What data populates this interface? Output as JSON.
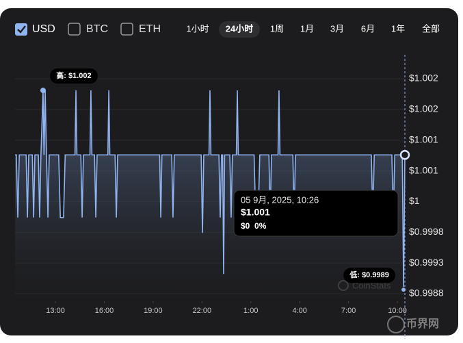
{
  "toolbar": {
    "other_currencies": [
      "BTC",
      "ETH"
    ],
    "ranges": [
      "1小时",
      "24小时",
      "1周",
      "1月",
      "3月",
      "6月",
      "1年",
      "全部"
    ],
    "selected_range": 1
  },
  "chart_data": {
    "type": "line",
    "series": [
      {
        "name": "USD",
        "color": "#8fb4f0",
        "x": [
          10.52,
          10.6,
          10.69,
          10.78,
          11.2,
          11.28,
          11.36,
          11.58,
          11.66,
          11.74,
          11.95,
          12.03,
          12.11,
          12.24,
          12.3,
          12.37,
          12.45,
          12.54,
          12.62,
          13.2,
          13.3,
          13.5,
          13.6,
          14.2,
          14.26,
          14.32,
          14.56,
          14.64,
          14.72,
          15.12,
          15.18,
          15.24,
          15.4,
          15.48,
          15.56,
          16.22,
          16.28,
          16.34,
          16.66,
          16.74,
          16.82,
          19.4,
          19.47,
          19.54,
          20.14,
          20.22,
          20.3,
          21.95,
          22.03,
          22.11,
          22.43,
          22.49,
          22.55,
          23.04,
          23.12,
          23.2,
          23.27,
          23.33,
          23.39,
          23.71,
          23.79,
          23.87,
          24.11,
          24.17,
          24.23,
          25.2,
          25.3,
          25.45,
          25.55,
          26.11,
          26.19,
          26.27,
          26.67,
          26.73,
          26.79,
          27.58,
          27.66,
          27.74,
          32.4,
          32.49,
          32.58,
          33.66,
          33.75,
          33.84,
          34.3,
          34.38,
          34.46
        ],
        "values": [
          1.00104,
          1.00104,
          1.00002,
          1.00104,
          1.00104,
          1.00002,
          1.00104,
          1.00104,
          1.00002,
          1.00104,
          1.00104,
          1.00002,
          1.00104,
          1.00209,
          1.00104,
          1.00209,
          1.00104,
          1.00002,
          1.00104,
          1.00104,
          1.00002,
          1.00002,
          1.00104,
          1.00104,
          1.00209,
          1.00104,
          1.00104,
          1.00002,
          1.00104,
          1.00104,
          1.00209,
          1.00104,
          1.00104,
          1.00002,
          1.00104,
          1.00104,
          1.00209,
          1.00104,
          1.00104,
          1.00002,
          1.00104,
          1.00104,
          1.00002,
          1.00104,
          1.00104,
          1.00002,
          1.00104,
          1.00104,
          0.99977,
          1.00104,
          1.00104,
          1.00209,
          1.00104,
          1.00104,
          1.00002,
          1.00104,
          1.00104,
          0.9991,
          1.00104,
          1.00104,
          1.00002,
          1.00104,
          1.00104,
          1.00209,
          1.00104,
          1.00104,
          1.00002,
          1.00002,
          1.00104,
          1.00104,
          1.00002,
          1.00104,
          1.00104,
          1.00209,
          1.00104,
          1.00104,
          1.00002,
          1.00104,
          1.00104,
          1.00002,
          1.00104,
          1.00104,
          1.00002,
          1.00104,
          1.00104,
          0.99889,
          1.00104
        ]
      }
    ],
    "xlim": [
      10.52,
      34.46
    ],
    "xticks": [
      {
        "value": 13,
        "label": "13:00"
      },
      {
        "value": 16,
        "label": "16:00"
      },
      {
        "value": 19,
        "label": "19:00"
      },
      {
        "value": 22,
        "label": "22:00"
      },
      {
        "value": 25,
        "label": "1:00"
      },
      {
        "value": 28,
        "label": "4:00"
      },
      {
        "value": 31,
        "label": "7:00"
      },
      {
        "value": 34,
        "label": "10:00"
      }
    ],
    "ylim": [
      0.99878,
      1.00228
    ],
    "yticks": [
      {
        "value": 0.99878,
        "label": "$0.9988"
      },
      {
        "value": 0.99928,
        "label": "$0.9993"
      },
      {
        "value": 0.99978,
        "label": "$0.9998"
      },
      {
        "value": 1.00028,
        "label": "$1"
      },
      {
        "value": 1.00078,
        "label": "$1.001"
      },
      {
        "value": 1.00128,
        "label": "$1.001"
      },
      {
        "value": 1.00178,
        "label": "$1.002"
      },
      {
        "value": 1.00228,
        "label": "$1.002"
      }
    ],
    "grid": true,
    "high_index": 13,
    "high_label": "高: $1.002",
    "low_index": 85,
    "low_label": "低: $0.9989",
    "tooltip": {
      "date": "05 9月, 2025, 10:26",
      "price": "$1.001",
      "change": "$0  0%"
    },
    "watermark": "CoinStats"
  },
  "logo": "币界网"
}
